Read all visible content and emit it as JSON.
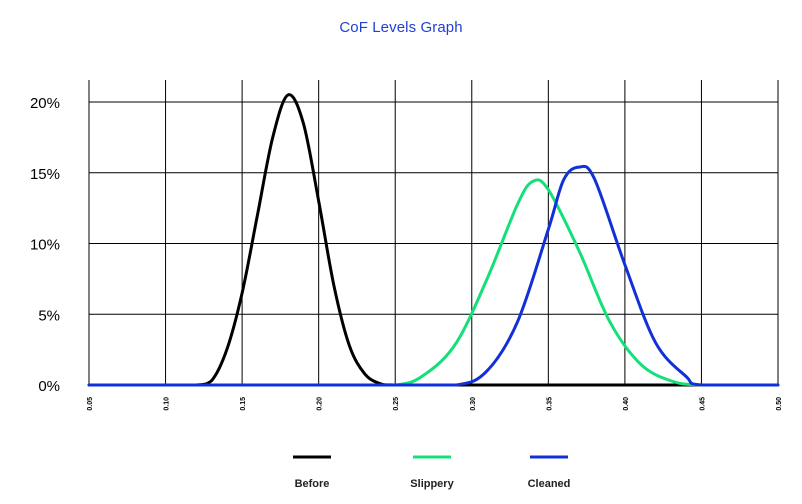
{
  "chart_data": {
    "type": "line",
    "title": "CoF Levels Graph",
    "xlabel": "",
    "ylabel": "",
    "x_ticks": [
      "0.05",
      "0.10",
      "0.15",
      "0.20",
      "0.25",
      "0.30",
      "0.35",
      "0.40",
      "0.45",
      "0.50"
    ],
    "y_ticks": [
      "0%",
      "5%",
      "10%",
      "15%",
      "20%"
    ],
    "xlim": [
      0.05,
      0.5
    ],
    "ylim": [
      0,
      20
    ],
    "grid": true,
    "legend_position": "bottom",
    "series": [
      {
        "name": "Before",
        "color": "#000000",
        "x": [
          0.05,
          0.1,
          0.12,
          0.13,
          0.14,
          0.15,
          0.16,
          0.17,
          0.18,
          0.19,
          0.2,
          0.21,
          0.22,
          0.23,
          0.24,
          0.25,
          0.3,
          0.35,
          0.4,
          0.45,
          0.5
        ],
        "y": [
          0,
          0,
          0,
          0.3,
          2.5,
          6.5,
          12.0,
          17.5,
          20.5,
          18.5,
          13.0,
          7.0,
          2.8,
          0.8,
          0.1,
          0,
          0,
          0,
          0,
          0,
          0
        ]
      },
      {
        "name": "Slippery",
        "color": "#14e07a",
        "x": [
          0.05,
          0.2,
          0.25,
          0.27,
          0.29,
          0.31,
          0.33,
          0.34,
          0.35,
          0.37,
          0.39,
          0.41,
          0.43,
          0.45,
          0.5
        ],
        "y": [
          0,
          0,
          0,
          0.8,
          3.0,
          7.5,
          12.8,
          14.4,
          13.8,
          9.5,
          4.5,
          1.5,
          0.3,
          0,
          0
        ]
      },
      {
        "name": "Cleaned",
        "color": "#1230d8",
        "x": [
          0.05,
          0.2,
          0.25,
          0.29,
          0.31,
          0.33,
          0.35,
          0.36,
          0.37,
          0.38,
          0.4,
          0.42,
          0.44,
          0.45,
          0.5
        ],
        "y": [
          0,
          0,
          0,
          0,
          1.0,
          4.5,
          11.0,
          14.5,
          15.4,
          14.6,
          8.5,
          3.0,
          0.6,
          0,
          0
        ]
      }
    ]
  }
}
